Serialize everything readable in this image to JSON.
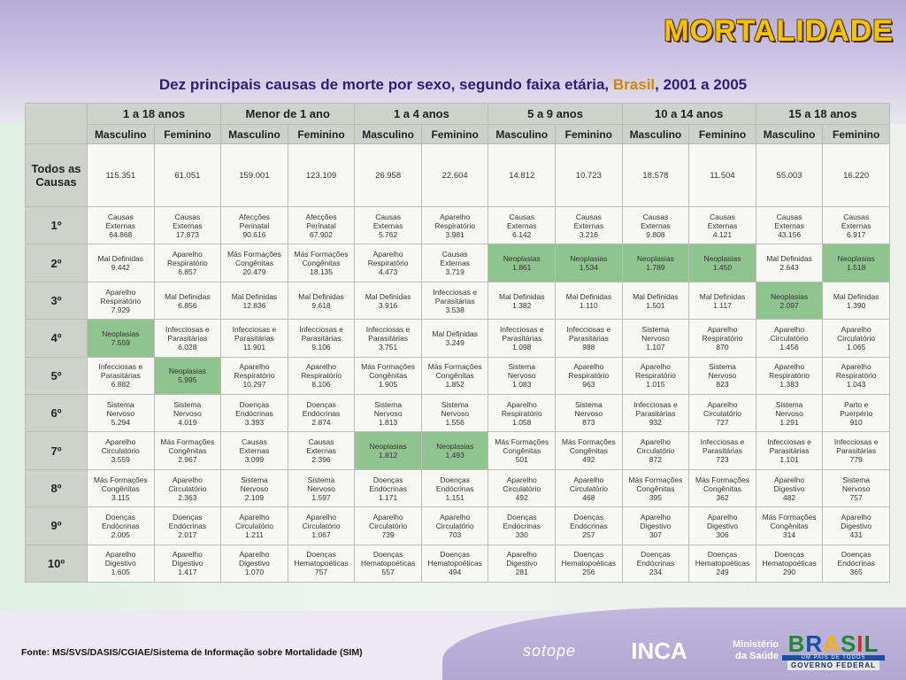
{
  "title": "MORTALIDADE",
  "subtitle": {
    "before": "Dez principais causas de morte por sexo, segundo faixa etária,",
    "highlight": "Brasil",
    "after": ", 2001 a 2005"
  },
  "table": {
    "age_groups": [
      "1 a 18 anos",
      "Menor de 1 ano",
      "1 a 4 anos",
      "5 a 9 anos",
      "10 a 14 anos",
      "15 a 18 anos"
    ],
    "sex_labels": [
      "Masculino",
      "Feminino",
      "Masculino",
      "Feminino",
      "Masculino",
      "Feminino",
      "Masculino",
      "Feminino",
      "Masculino",
      "Feminino",
      "Masculino",
      "Feminino"
    ],
    "total_label": "Todos as\nCausas",
    "totals": [
      "115.351",
      "61.051",
      "159.001",
      "123.109",
      "26.958",
      "22.604",
      "14.812",
      "10.723",
      "18.578",
      "11.504",
      "55.003",
      "16.220"
    ],
    "highlight_color": "#8fc48f",
    "ranks": [
      {
        "label": "1º",
        "cells": [
          {
            "c": "Causas\nExternas",
            "v": "64.868"
          },
          {
            "c": "Causas\nExternas",
            "v": "17.873"
          },
          {
            "c": "Afecções\nPerinatal",
            "v": "90.616"
          },
          {
            "c": "Afecções\nPerinatal",
            "v": "67.902"
          },
          {
            "c": "Causas\nExternas",
            "v": "5.762"
          },
          {
            "c": "Aparelho\nRespiratório",
            "v": "3.981"
          },
          {
            "c": "Causas\nExternas",
            "v": "6.142"
          },
          {
            "c": "Causas\nExternas",
            "v": "3.216"
          },
          {
            "c": "Causas\nExternas",
            "v": "9.808"
          },
          {
            "c": "Causas\nExternas",
            "v": "4.121"
          },
          {
            "c": "Causas\nExternas",
            "v": "43.156"
          },
          {
            "c": "Causas\nExternas",
            "v": "6.917"
          }
        ]
      },
      {
        "label": "2º",
        "cells": [
          {
            "c": "Mal Definidas",
            "v": "9.442"
          },
          {
            "c": "Aparelho\nRespiratório",
            "v": "6.857"
          },
          {
            "c": "Más Formações\nCongênitas",
            "v": "20.479"
          },
          {
            "c": "Más Formações\nCongênitas",
            "v": "18.135"
          },
          {
            "c": "Aparelho\nRespiratório",
            "v": "4.473"
          },
          {
            "c": "Causas\nExternas",
            "v": "3.719"
          },
          {
            "c": "Neoplasias",
            "v": "1.861",
            "g": true
          },
          {
            "c": "Neoplasias",
            "v": "1.534",
            "g": true
          },
          {
            "c": "Neoplasias",
            "v": "1.789",
            "g": true
          },
          {
            "c": "Neoplasias",
            "v": "1.450",
            "g": true
          },
          {
            "c": "Mal Definidas",
            "v": "2.643"
          },
          {
            "c": "Neoplasias",
            "v": "1.518",
            "g": true
          }
        ]
      },
      {
        "label": "3º",
        "cells": [
          {
            "c": "Aparelho\nRespiratório",
            "v": "7.929"
          },
          {
            "c": "Mal Definidas",
            "v": "6.856"
          },
          {
            "c": "Mal Definidas",
            "v": "12.836"
          },
          {
            "c": "Mal Definidas",
            "v": "9.618"
          },
          {
            "c": "Mal Definidas",
            "v": "3.916"
          },
          {
            "c": "Infecciosas e\nParasitárias",
            "v": "3.538"
          },
          {
            "c": "Mal Definidas",
            "v": "1.382"
          },
          {
            "c": "Mal Definidas",
            "v": "1.110"
          },
          {
            "c": "Mal Definidas",
            "v": "1.501"
          },
          {
            "c": "Mal Definidas",
            "v": "1.117"
          },
          {
            "c": "Neoplasias",
            "v": "2.097",
            "g": true
          },
          {
            "c": "Mal Definidas",
            "v": "1.390"
          }
        ]
      },
      {
        "label": "4º",
        "cells": [
          {
            "c": "Neoplasias",
            "v": "7.559",
            "g": true
          },
          {
            "c": "Infecciosas e\nParasitárias",
            "v": "6.028"
          },
          {
            "c": "Infecciosas e\nParasitárias",
            "v": "11.901"
          },
          {
            "c": "Infecciosas e\nParasitárias",
            "v": "9.106"
          },
          {
            "c": "Infecciosas e\nParasitárias",
            "v": "3.751"
          },
          {
            "c": "Mal Definidas",
            "v": "3.249"
          },
          {
            "c": "Infecciosas e\nParasitárias",
            "v": "1.098"
          },
          {
            "c": "Infecciosas e\nParasitárias",
            "v": "988"
          },
          {
            "c": "Sistema\nNervoso",
            "v": "1.107"
          },
          {
            "c": "Aparelho\nRespiratório",
            "v": "870"
          },
          {
            "c": "Aparelho\nCirculatório",
            "v": "1.456"
          },
          {
            "c": "Aparelho\nCirculatório",
            "v": "1.065"
          }
        ]
      },
      {
        "label": "5º",
        "cells": [
          {
            "c": "Infecciosas e\nParasitárias",
            "v": "6.882"
          },
          {
            "c": "Neoplasias",
            "v": "5.995",
            "g": true
          },
          {
            "c": "Aparelho\nRespiratório",
            "v": "10.297"
          },
          {
            "c": "Aparelho\nRespiratório",
            "v": "8.106"
          },
          {
            "c": "Más Formações\nCongênitas",
            "v": "1.905"
          },
          {
            "c": "Más Formações\nCongênitas",
            "v": "1.852"
          },
          {
            "c": "Sistema\nNervoso",
            "v": "1.083"
          },
          {
            "c": "Aparelho\nRespiratório",
            "v": "963"
          },
          {
            "c": "Aparelho\nRespiratório",
            "v": "1.015"
          },
          {
            "c": "Sistema\nNervoso",
            "v": "823"
          },
          {
            "c": "Aparelho\nRespiratório",
            "v": "1.383"
          },
          {
            "c": "Aparelho\nRespiratório",
            "v": "1.043"
          }
        ]
      },
      {
        "label": "6º",
        "cells": [
          {
            "c": "Sistema\nNervoso",
            "v": "5.294"
          },
          {
            "c": "Sistema\nNervoso",
            "v": "4.019"
          },
          {
            "c": "Doenças\nEndócrinas",
            "v": "3.393"
          },
          {
            "c": "Doenças\nEndócrinas",
            "v": "2.874"
          },
          {
            "c": "Sistema\nNervoso",
            "v": "1.813"
          },
          {
            "c": "Sistema\nNervoso",
            "v": "1.556"
          },
          {
            "c": "Aparelho\nRespiratório",
            "v": "1.058"
          },
          {
            "c": "Sistema\nNervoso",
            "v": "873"
          },
          {
            "c": "Infecciosas e\nParasitárias",
            "v": "932"
          },
          {
            "c": "Aparelho\nCirculatório",
            "v": "727"
          },
          {
            "c": "Sistema\nNervoso",
            "v": "1.291"
          },
          {
            "c": "Parto e\nPuerpério",
            "v": "910"
          }
        ]
      },
      {
        "label": "7º",
        "cells": [
          {
            "c": "Aparelho\nCirculatório",
            "v": "3.559"
          },
          {
            "c": "Más Formações\nCongênitas",
            "v": "2.967"
          },
          {
            "c": "Causas\nExternas",
            "v": "3.099"
          },
          {
            "c": "Causas\nExternas",
            "v": "2.396"
          },
          {
            "c": "Neoplasias",
            "v": "1.812",
            "g": true
          },
          {
            "c": "Neoplasias",
            "v": "1.493",
            "g": true
          },
          {
            "c": "Más Formações\nCongênitas",
            "v": "501"
          },
          {
            "c": "Más Formações\nCongênitas",
            "v": "492"
          },
          {
            "c": "Aparelho\nCirculatório",
            "v": "872"
          },
          {
            "c": "Infecciosas e\nParasitárias",
            "v": "723"
          },
          {
            "c": "Infecciosas e\nParasitárias",
            "v": "1.101"
          },
          {
            "c": "Infecciosas e\nParasitárias",
            "v": "779"
          }
        ]
      },
      {
        "label": "8º",
        "cells": [
          {
            "c": "Más Formações\nCongênitas",
            "v": "3.115"
          },
          {
            "c": "Aparelho\nCirculatório",
            "v": "2.363"
          },
          {
            "c": "Sistema\nNervoso",
            "v": "2.109"
          },
          {
            "c": "Sistema\nNervoso",
            "v": "1.597"
          },
          {
            "c": "Doenças\nEndócrinas",
            "v": "1.171"
          },
          {
            "c": "Doenças\nEndócrinas",
            "v": "1.151"
          },
          {
            "c": "Aparelho\nCirculatório",
            "v": "492"
          },
          {
            "c": "Aparelho\nCirculatório",
            "v": "468"
          },
          {
            "c": "Más Formações\nCongênitas",
            "v": "395"
          },
          {
            "c": "Más Formações\nCongênitas",
            "v": "362"
          },
          {
            "c": "Aparelho\nDigestivo",
            "v": "482"
          },
          {
            "c": "Sistema\nNervoso",
            "v": "757"
          }
        ]
      },
      {
        "label": "9º",
        "cells": [
          {
            "c": "Doenças\nEndócrinas",
            "v": "2.005"
          },
          {
            "c": "Doenças\nEndócrinas",
            "v": "2.017"
          },
          {
            "c": "Aparelho\nCirculatório",
            "v": "1.211"
          },
          {
            "c": "Aparelho\nCirculatório",
            "v": "1.067"
          },
          {
            "c": "Aparelho\nCirculatório",
            "v": "739"
          },
          {
            "c": "Aparelho\nCirculatório",
            "v": "703"
          },
          {
            "c": "Doenças\nEndócrinas",
            "v": "330"
          },
          {
            "c": "Doenças\nEndócrinas",
            "v": "257"
          },
          {
            "c": "Aparelho\nDigestivo",
            "v": "307"
          },
          {
            "c": "Aparelho\nDigestivo",
            "v": "306"
          },
          {
            "c": "Más Formações\nCongênitas",
            "v": "314"
          },
          {
            "c": "Aparelho\nDigestivo",
            "v": "431"
          }
        ]
      },
      {
        "label": "10º",
        "cells": [
          {
            "c": "Aparelho\nDigestivo",
            "v": "1.605"
          },
          {
            "c": "Aparelho\nDigestivo",
            "v": "1.417"
          },
          {
            "c": "Aparelho\nDigestivo",
            "v": "1.070"
          },
          {
            "c": "Doenças\nHematopoéticas",
            "v": "757"
          },
          {
            "c": "Doenças\nHematopoéticas",
            "v": "557"
          },
          {
            "c": "Doenças\nHematopoéticas",
            "v": "494"
          },
          {
            "c": "Aparelho\nDigestivo",
            "v": "281"
          },
          {
            "c": "Doenças\nHematopoéticas",
            "v": "256"
          },
          {
            "c": "Doenças\nEndócrinas",
            "v": "234"
          },
          {
            "c": "Doenças\nHematopoéticas",
            "v": "249"
          },
          {
            "c": "Doenças\nHematopoéticas",
            "v": "290"
          },
          {
            "c": "Doenças\nEndócrinas",
            "v": "365"
          }
        ]
      }
    ]
  },
  "footer": "Fonte: MS/SVS/DASIS/CGIAE/Sistema de Informação sobre Mortalidade (SIM)",
  "logos": {
    "sotope": "sotope",
    "inca": "INCA",
    "ministerio": [
      "Ministério",
      "da Saúde"
    ],
    "brasil_letters": [
      "B",
      "R",
      "A",
      "S",
      "I",
      "L"
    ],
    "brasil_tagline": "UM PAÍS DE TODOS",
    "governo": "GOVERNO FEDERAL"
  }
}
